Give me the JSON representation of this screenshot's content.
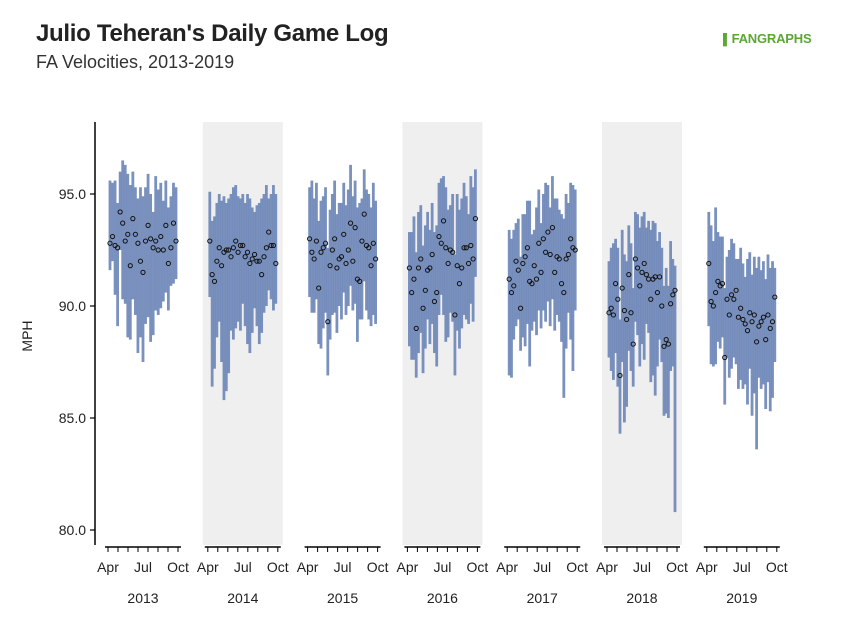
{
  "header": {
    "title": "Julio Teheran's Daily Game Log",
    "subtitle": "FA Velocities, 2013-2019",
    "logo": "FANGRAPHS"
  },
  "colors": {
    "bar": "#6f88b8",
    "shade": "#efefef",
    "axis": "#000000",
    "logo": "#5aa832"
  },
  "chart_data": {
    "type": "scatter",
    "title": "Julio Teheran's Daily Game Log",
    "subtitle": "FA Velocities, 2013-2019",
    "ylabel": "MPH",
    "ylim": [
      79.5,
      98.5
    ],
    "yticks": [
      "80.0",
      "85.0",
      "90.0",
      "95.0"
    ],
    "ytick_values": [
      80,
      85,
      90,
      95
    ],
    "month_ticks": [
      "Apr",
      "Jul",
      "Oct"
    ],
    "shaded_years": [
      "2014",
      "2016",
      "2018"
    ],
    "series_description": "per-game average (circle) with min–max range (bar)",
    "years": [
      {
        "year": "2013",
        "games": [
          [
            92.8,
            91.6,
            95.6
          ],
          [
            93.1,
            92.0,
            95.5
          ],
          [
            92.7,
            90.5,
            95.6
          ],
          [
            92.6,
            89.1,
            94.6
          ],
          [
            94.2,
            92.5,
            96.0
          ],
          [
            93.7,
            90.3,
            96.5
          ],
          [
            92.9,
            90.1,
            96.3
          ],
          [
            93.2,
            88.6,
            95.9
          ],
          [
            91.8,
            88.5,
            95.4
          ],
          [
            93.9,
            90.3,
            96.0
          ],
          [
            93.2,
            89.6,
            95.3
          ],
          [
            92.8,
            87.9,
            94.8
          ],
          [
            92.0,
            88.6,
            95.3
          ],
          [
            91.5,
            87.5,
            94.9
          ],
          [
            92.9,
            89.2,
            95.3
          ],
          [
            93.6,
            89.5,
            95.9
          ],
          [
            93.0,
            88.4,
            95.0
          ],
          [
            92.6,
            88.7,
            94.2
          ],
          [
            92.9,
            89.8,
            95.8
          ],
          [
            92.5,
            89.6,
            95.2
          ],
          [
            93.1,
            89.9,
            95.5
          ],
          [
            92.5,
            90.2,
            94.7
          ],
          [
            93.6,
            90.6,
            95.6
          ],
          [
            91.9,
            89.8,
            94.4
          ],
          [
            92.6,
            90.9,
            94.9
          ],
          [
            93.7,
            91.0,
            95.5
          ],
          [
            92.9,
            91.2,
            95.3
          ]
        ]
      },
      {
        "year": "2014",
        "games": [
          [
            92.9,
            90.4,
            95.1
          ],
          [
            91.4,
            86.4,
            93.8
          ],
          [
            91.1,
            87.2,
            94.0
          ],
          [
            92.0,
            88.6,
            94.6
          ],
          [
            92.6,
            89.3,
            95.0
          ],
          [
            91.8,
            87.5,
            94.7
          ],
          [
            92.4,
            85.8,
            94.9
          ],
          [
            92.5,
            86.2,
            94.6
          ],
          [
            92.5,
            87.0,
            94.8
          ],
          [
            92.2,
            88.9,
            95.0
          ],
          [
            92.6,
            88.5,
            95.3
          ],
          [
            92.9,
            89.0,
            95.4
          ],
          [
            92.4,
            89.3,
            94.9
          ],
          [
            92.7,
            88.9,
            94.8
          ],
          [
            92.7,
            90.1,
            95.0
          ],
          [
            92.2,
            89.1,
            94.6
          ],
          [
            92.4,
            88.3,
            95.0
          ],
          [
            91.9,
            87.9,
            94.8
          ],
          [
            92.1,
            88.8,
            94.4
          ],
          [
            92.3,
            89.9,
            94.2
          ],
          [
            92.0,
            89.1,
            94.5
          ],
          [
            92.0,
            88.3,
            94.6
          ],
          [
            91.4,
            88.8,
            94.8
          ],
          [
            92.2,
            89.7,
            95.0
          ],
          [
            92.6,
            90.0,
            95.4
          ],
          [
            93.3,
            90.7,
            94.8
          ],
          [
            92.7,
            90.3,
            95.0
          ],
          [
            92.7,
            89.8,
            95.4
          ],
          [
            91.9,
            90.1,
            95.0
          ]
        ]
      },
      {
        "year": "2015",
        "games": [
          [
            93.0,
            90.4,
            95.3
          ],
          [
            92.4,
            89.7,
            95.6
          ],
          [
            92.1,
            89.7,
            94.8
          ],
          [
            92.9,
            90.3,
            95.5
          ],
          [
            90.8,
            88.3,
            93.8
          ],
          [
            92.4,
            88.1,
            94.7
          ],
          [
            92.6,
            89.0,
            94.9
          ],
          [
            92.8,
            89.7,
            95.3
          ],
          [
            89.3,
            86.9,
            92.6
          ],
          [
            91.8,
            88.5,
            94.3
          ],
          [
            92.5,
            89.6,
            95.0
          ],
          [
            93.0,
            89.7,
            95.6
          ],
          [
            91.7,
            88.8,
            94.1
          ],
          [
            92.1,
            90.0,
            94.6
          ],
          [
            92.2,
            89.4,
            94.6
          ],
          [
            93.2,
            90.6,
            95.5
          ],
          [
            91.9,
            89.6,
            94.5
          ],
          [
            92.5,
            90.0,
            95.2
          ],
          [
            93.7,
            90.9,
            96.3
          ],
          [
            92.0,
            89.8,
            94.9
          ],
          [
            93.5,
            90.1,
            95.6
          ],
          [
            91.2,
            88.4,
            94.4
          ],
          [
            91.1,
            89.4,
            94.6
          ],
          [
            92.9,
            89.4,
            94.8
          ],
          [
            94.1,
            91.1,
            96.1
          ],
          [
            92.7,
            89.8,
            95.2
          ],
          [
            92.6,
            89.4,
            95.0
          ],
          [
            91.8,
            89.1,
            94.4
          ],
          [
            92.8,
            89.6,
            95.5
          ],
          [
            92.1,
            89.2,
            94.7
          ]
        ]
      },
      {
        "year": "2016",
        "games": [
          [
            91.7,
            88.2,
            93.3
          ],
          [
            90.6,
            87.6,
            93.3
          ],
          [
            91.2,
            87.6,
            94.0
          ],
          [
            89.0,
            86.8,
            92.4
          ],
          [
            91.7,
            87.9,
            94.2
          ],
          [
            92.1,
            88.8,
            94.5
          ],
          [
            89.9,
            87.0,
            92.7
          ],
          [
            90.7,
            88.1,
            93.6
          ],
          [
            91.6,
            89.4,
            94.2
          ],
          [
            91.7,
            88.3,
            93.4
          ],
          [
            92.3,
            89.2,
            94.6
          ],
          [
            90.2,
            87.9,
            93.3
          ],
          [
            90.6,
            87.3,
            93.6
          ],
          [
            93.1,
            89.6,
            95.5
          ],
          [
            92.8,
            90.5,
            95.7
          ],
          [
            93.8,
            89.6,
            95.8
          ],
          [
            92.6,
            88.4,
            95.3
          ],
          [
            91.9,
            88.6,
            94.3
          ],
          [
            92.5,
            89.7,
            94.5
          ],
          [
            92.4,
            89.3,
            95.0
          ],
          [
            89.6,
            86.9,
            92.3
          ],
          [
            91.8,
            88.9,
            95.0
          ],
          [
            91.0,
            88.1,
            94.3
          ],
          [
            91.7,
            89.0,
            94.8
          ],
          [
            92.6,
            89.6,
            95.5
          ],
          [
            92.6,
            89.4,
            94.9
          ],
          [
            91.9,
            89.2,
            94.1
          ],
          [
            92.7,
            90.1,
            95.8
          ],
          [
            92.1,
            89.3,
            95.3
          ],
          [
            93.9,
            91.3,
            96.1
          ]
        ]
      },
      {
        "year": "2017",
        "games": [
          [
            91.2,
            86.9,
            93.4
          ],
          [
            90.6,
            86.8,
            93.0
          ],
          [
            90.9,
            88.5,
            93.4
          ],
          [
            92.0,
            89.1,
            93.7
          ],
          [
            91.6,
            89.4,
            93.9
          ],
          [
            89.9,
            88.0,
            92.2
          ],
          [
            91.9,
            88.6,
            94.1
          ],
          [
            92.2,
            88.2,
            94.1
          ],
          [
            92.6,
            89.2,
            94.7
          ],
          [
            91.1,
            87.3,
            94.7
          ],
          [
            91.0,
            88.9,
            93.2
          ],
          [
            91.8,
            89.3,
            93.4
          ],
          [
            91.2,
            88.7,
            94.4
          ],
          [
            92.8,
            89.8,
            95.2
          ],
          [
            91.5,
            89.0,
            93.7
          ],
          [
            93.0,
            89.8,
            95.0
          ],
          [
            92.4,
            89.3,
            95.5
          ],
          [
            93.3,
            90.2,
            95.4
          ],
          [
            92.3,
            89.1,
            94.4
          ],
          [
            93.5,
            90.3,
            95.8
          ],
          [
            91.5,
            88.9,
            94.8
          ],
          [
            92.2,
            89.6,
            94.8
          ],
          [
            92.1,
            89.3,
            94.3
          ],
          [
            91.0,
            88.4,
            94.1
          ],
          [
            90.6,
            85.9,
            93.9
          ],
          [
            92.1,
            88.1,
            95.0
          ],
          [
            92.3,
            89.7,
            94.6
          ],
          [
            93.0,
            88.5,
            95.5
          ],
          [
            92.6,
            87.1,
            95.4
          ],
          [
            92.5,
            89.8,
            95.2
          ]
        ]
      },
      {
        "year": "2018",
        "games": [
          [
            89.7,
            87.7,
            92.0
          ],
          [
            89.9,
            87.1,
            92.6
          ],
          [
            89.6,
            86.7,
            92.8
          ],
          [
            91.0,
            87.9,
            93.0
          ],
          [
            90.3,
            86.4,
            92.6
          ],
          [
            86.9,
            84.3,
            89.4
          ],
          [
            90.8,
            87.5,
            93.4
          ],
          [
            89.8,
            84.8,
            92.3
          ],
          [
            89.4,
            85.5,
            92.0
          ],
          [
            91.4,
            88.0,
            93.6
          ],
          [
            89.7,
            87.1,
            92.8
          ],
          [
            88.3,
            86.4,
            90.8
          ],
          [
            92.1,
            89.3,
            94.2
          ],
          [
            91.7,
            88.7,
            94.1
          ],
          [
            90.9,
            87.3,
            93.5
          ],
          [
            91.5,
            88.3,
            94.0
          ],
          [
            91.9,
            87.6,
            94.2
          ],
          [
            91.4,
            89.2,
            93.5
          ],
          [
            91.2,
            88.8,
            93.8
          ],
          [
            90.3,
            86.6,
            93.4
          ],
          [
            91.2,
            86.9,
            93.8
          ],
          [
            91.3,
            86.0,
            93.7
          ],
          [
            90.6,
            87.3,
            92.9
          ],
          [
            91.3,
            88.5,
            93.3
          ],
          [
            90.0,
            87.5,
            92.6
          ],
          [
            88.2,
            85.1,
            90.9
          ],
          [
            88.5,
            85.2,
            91.7
          ],
          [
            88.3,
            85.0,
            90.9
          ],
          [
            90.1,
            87.1,
            92.9
          ],
          [
            90.5,
            87.3,
            92.1
          ],
          [
            90.7,
            80.8,
            91.8
          ]
        ]
      },
      {
        "year": "2019",
        "games": [
          [
            91.9,
            89.1,
            94.2
          ],
          [
            90.2,
            87.4,
            93.6
          ],
          [
            90.0,
            87.3,
            92.9
          ],
          [
            90.6,
            87.4,
            94.4
          ],
          [
            91.1,
            88.4,
            93.3
          ],
          [
            90.9,
            88.1,
            93.1
          ],
          [
            91.0,
            88.6,
            93.1
          ],
          [
            87.7,
            85.6,
            90.8
          ],
          [
            90.3,
            87.7,
            92.2
          ],
          [
            89.6,
            86.8,
            92.5
          ],
          [
            90.5,
            87.2,
            93.0
          ],
          [
            90.3,
            87.7,
            92.8
          ],
          [
            90.7,
            87.4,
            92.1
          ],
          [
            89.5,
            86.3,
            92.1
          ],
          [
            89.9,
            86.7,
            92.6
          ],
          [
            89.4,
            86.3,
            91.9
          ],
          [
            89.2,
            86.5,
            91.3
          ],
          [
            88.9,
            85.6,
            92.1
          ],
          [
            89.7,
            87.2,
            92.4
          ],
          [
            89.3,
            85.1,
            91.4
          ],
          [
            89.6,
            86.1,
            92.2
          ],
          [
            88.4,
            83.6,
            91.7
          ],
          [
            89.1,
            86.8,
            92.2
          ],
          [
            89.3,
            86.3,
            91.6
          ],
          [
            89.5,
            86.5,
            92.0
          ],
          [
            88.5,
            85.4,
            91.2
          ],
          [
            89.6,
            86.6,
            92.3
          ],
          [
            89.0,
            85.3,
            91.7
          ],
          [
            89.3,
            85.9,
            92.0
          ],
          [
            90.4,
            87.5,
            91.7
          ]
        ]
      }
    ]
  }
}
